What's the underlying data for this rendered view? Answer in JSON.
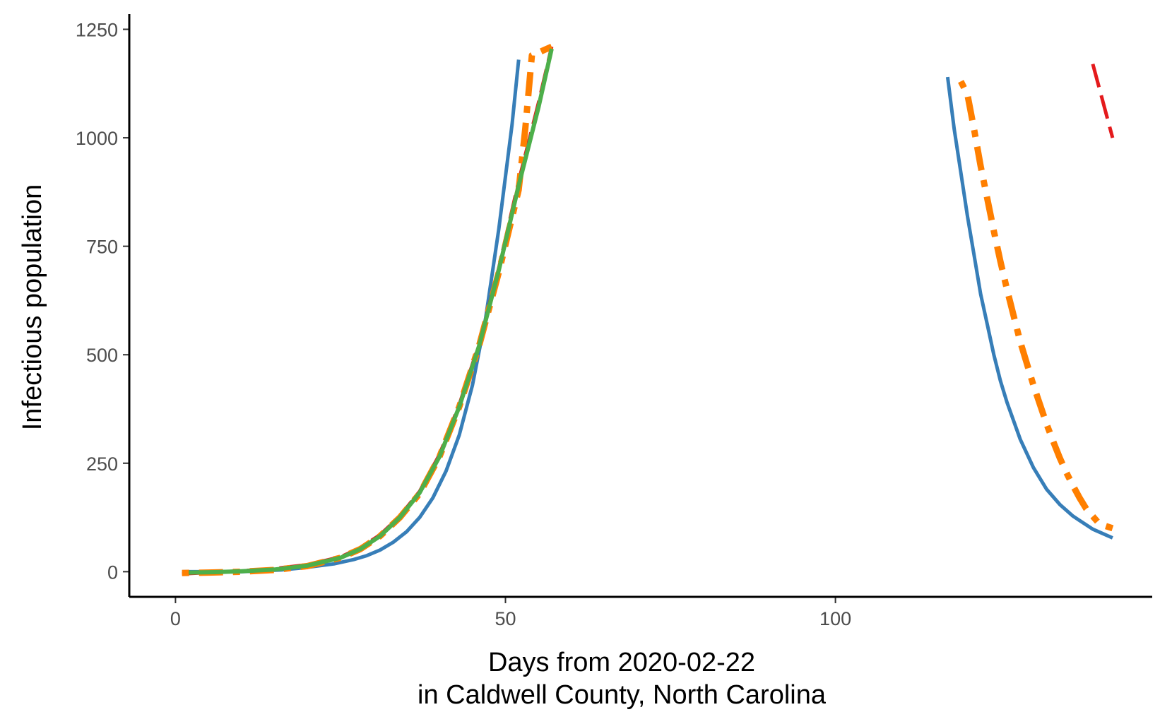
{
  "chart_data": {
    "type": "line",
    "title": "",
    "xlabel_lines": [
      "Days from 2020-02-22",
      "in Caldwell County, North Carolina"
    ],
    "ylabel": "Infectious population",
    "xlim": [
      -7,
      148
    ],
    "ylim": [
      -58,
      1285
    ],
    "x_ticks": [
      0,
      50,
      100
    ],
    "y_ticks": [
      0,
      250,
      500,
      750,
      1000,
      1250
    ],
    "grid": false,
    "legend": "none",
    "series": [
      {
        "color": "#377eb8",
        "style": "solid",
        "width": 5,
        "segments": [
          [
            [
              1,
              0
            ],
            [
              10,
              0
            ],
            [
              16,
              4
            ],
            [
              20,
              10
            ],
            [
              24,
              18
            ],
            [
              27,
              28
            ],
            [
              29,
              37
            ],
            [
              31,
              50
            ],
            [
              33,
              68
            ],
            [
              35,
              92
            ],
            [
              37,
              125
            ],
            [
              39,
              170
            ],
            [
              41,
              232
            ],
            [
              43,
              315
            ],
            [
              45,
              430
            ],
            [
              47,
              585
            ],
            [
              49,
              790
            ],
            [
              51,
              1030
            ],
            [
              52,
              1180
            ]
          ],
          [
            [
              117,
              1140
            ],
            [
              118,
              1020
            ],
            [
              119,
              920
            ],
            [
              120,
              820
            ],
            [
              121,
              730
            ],
            [
              122,
              640
            ],
            [
              123,
              570
            ],
            [
              124,
              500
            ],
            [
              125,
              440
            ],
            [
              126,
              390
            ],
            [
              128,
              305
            ],
            [
              130,
              240
            ],
            [
              132,
              190
            ],
            [
              134,
              155
            ],
            [
              136,
              128
            ],
            [
              139,
              98
            ],
            [
              142,
              78
            ]
          ]
        ]
      },
      {
        "color": "#e41a1c",
        "style": "longdash",
        "width": 5,
        "segments": [
          [
            [
              1,
              -5
            ],
            [
              5,
              -2
            ],
            [
              10,
              2
            ],
            [
              15,
              7
            ],
            [
              20,
              16
            ],
            [
              25,
              34
            ],
            [
              28,
              55
            ],
            [
              31,
              85
            ],
            [
              34,
              128
            ],
            [
              37,
              185
            ],
            [
              40,
              270
            ],
            [
              43,
              385
            ],
            [
              46,
              525
            ],
            [
              49,
              700
            ],
            [
              52,
              900
            ],
            [
              55,
              1080
            ],
            [
              57,
              1210
            ]
          ],
          [
            [
              139,
              1170
            ],
            [
              142,
              1000
            ]
          ]
        ]
      },
      {
        "color": "#ff7f00",
        "style": "dotdash",
        "width": 9,
        "segments": [
          [
            [
              1,
              -3
            ],
            [
              5,
              -2
            ],
            [
              10,
              0
            ],
            [
              15,
              4
            ],
            [
              20,
              13
            ],
            [
              25,
              32
            ],
            [
              28,
              52
            ],
            [
              31,
              82
            ],
            [
              34,
              125
            ],
            [
              37,
              180
            ],
            [
              40,
              265
            ],
            [
              43,
              380
            ],
            [
              46,
              520
            ],
            [
              49,
              690
            ],
            [
              52,
              880
            ],
            [
              53,
              1020
            ],
            [
              54,
              1190
            ],
            [
              57,
              1210
            ]
          ],
          [
            [
              119,
              1130
            ],
            [
              120,
              1100
            ],
            [
              121,
              1020
            ],
            [
              122,
              935
            ],
            [
              123,
              860
            ],
            [
              124,
              785
            ],
            [
              125,
              715
            ],
            [
              126,
              650
            ],
            [
              127,
              590
            ],
            [
              128,
              530
            ],
            [
              129,
              480
            ],
            [
              130,
              430
            ],
            [
              131,
              385
            ],
            [
              132,
              340
            ],
            [
              133,
              300
            ],
            [
              134,
              262
            ],
            [
              135,
              228
            ],
            [
              136,
              198
            ],
            [
              137,
              170
            ],
            [
              138,
              145
            ],
            [
              140,
              110
            ],
            [
              142,
              100
            ]
          ]
        ]
      },
      {
        "color": "#4daf4a",
        "style": "solid",
        "width": 6,
        "segments": [
          [
            [
              2,
              -2
            ],
            [
              6,
              -1
            ],
            [
              10,
              1
            ],
            [
              15,
              5
            ],
            [
              20,
              14
            ],
            [
              25,
              32
            ],
            [
              28,
              52
            ],
            [
              31,
              82
            ],
            [
              34,
              125
            ],
            [
              37,
              182
            ],
            [
              40,
              265
            ],
            [
              43,
              380
            ],
            [
              46,
              520
            ],
            [
              49,
              695
            ],
            [
              52,
              890
            ],
            [
              55,
              1070
            ],
            [
              57,
              1205
            ]
          ]
        ]
      }
    ]
  }
}
